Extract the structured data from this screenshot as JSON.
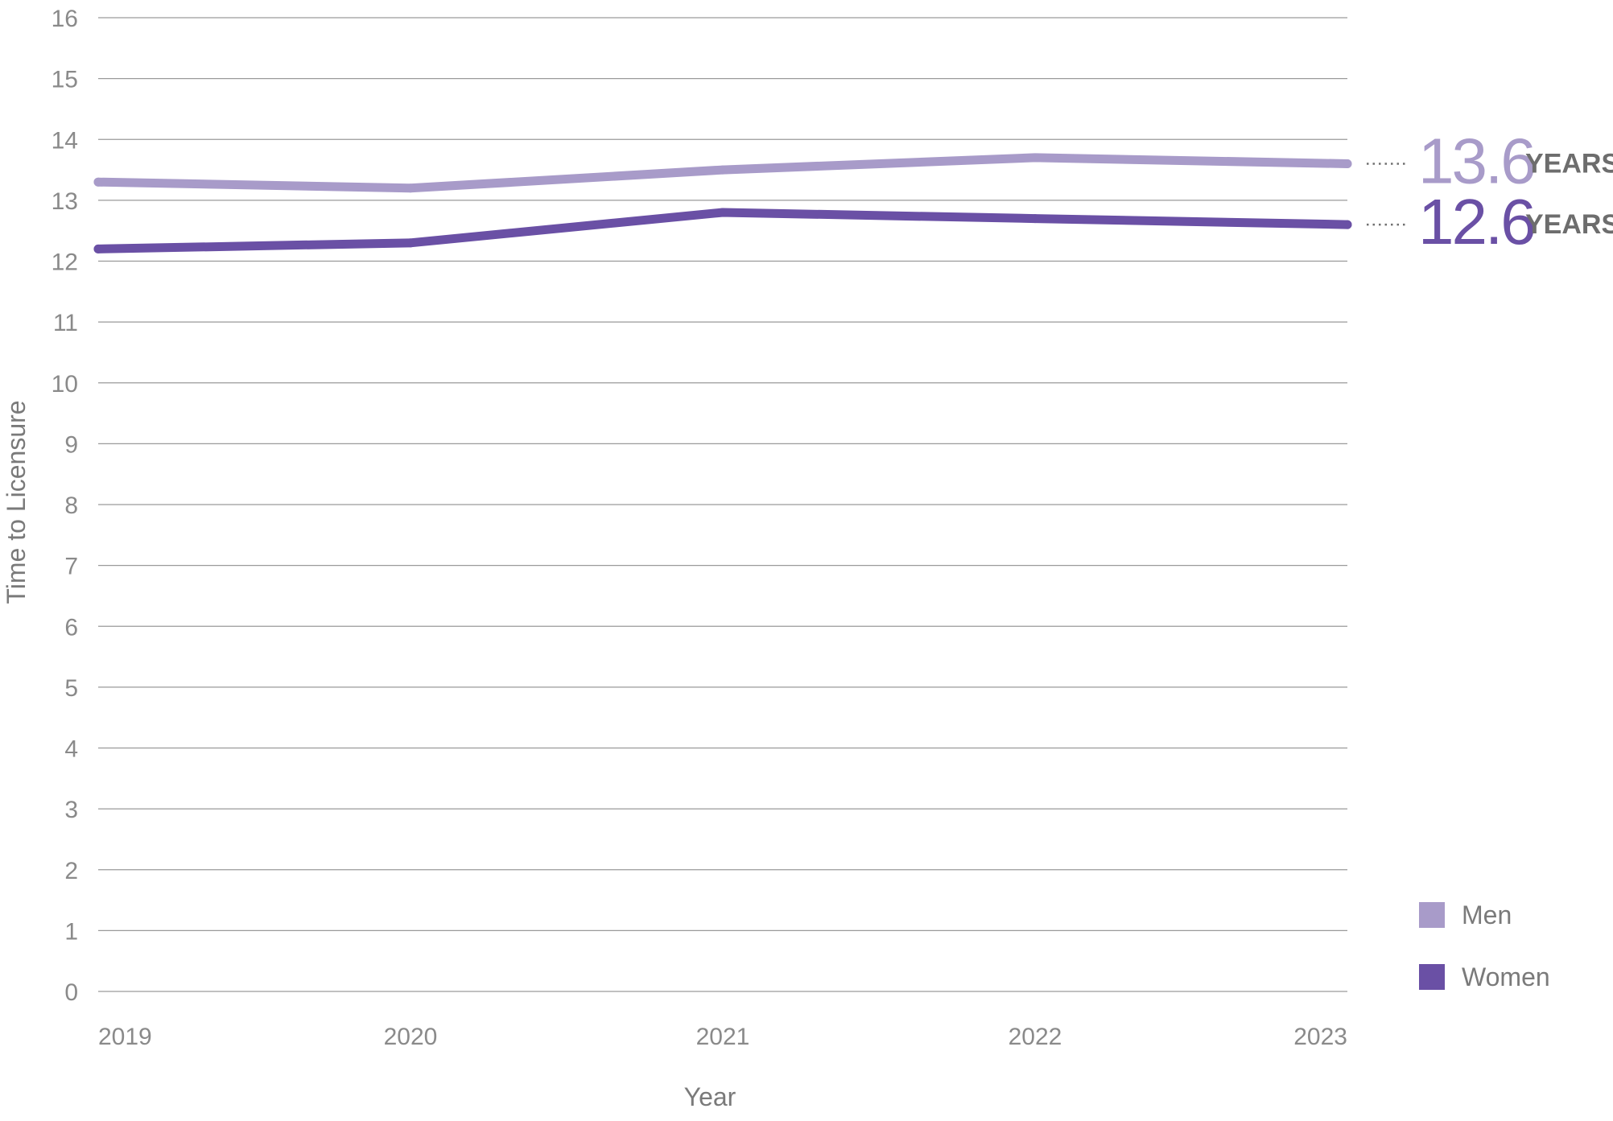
{
  "chart_data": {
    "type": "line",
    "title": "",
    "xlabel": "Year",
    "ylabel": "Time to Licensure",
    "x": [
      "2019",
      "2020",
      "2021",
      "2022",
      "2023"
    ],
    "ylim": [
      0,
      16
    ],
    "yticks": [
      "0",
      "1",
      "2",
      "3",
      "4",
      "5",
      "6",
      "7",
      "8",
      "9",
      "10",
      "11",
      "12",
      "13",
      "14",
      "15",
      "16"
    ],
    "grid": true,
    "legend_position": "bottom-right",
    "series": [
      {
        "name": "Men",
        "values": [
          13.3,
          13.2,
          13.5,
          13.7,
          13.6
        ],
        "color": "#a89bc9"
      },
      {
        "name": "Women",
        "values": [
          12.2,
          12.3,
          12.8,
          12.7,
          12.6
        ],
        "color": "#6a50a5"
      }
    ],
    "annotations": [
      {
        "series": "Men",
        "value": "13.6",
        "unit": "YEARS"
      },
      {
        "series": "Women",
        "value": "12.6",
        "unit": "YEARS"
      }
    ]
  }
}
